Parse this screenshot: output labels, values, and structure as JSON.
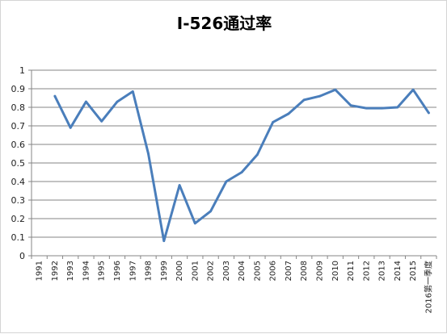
{
  "chart_data": {
    "type": "line",
    "title": "I-526通过率",
    "xlabel": "",
    "ylabel": "",
    "ylim": [
      0,
      1
    ],
    "yticks": [
      "0",
      "0.1",
      "0.2",
      "0.3",
      "0.4",
      "0.5",
      "0.6",
      "0.7",
      "0.8",
      "0.9",
      "1"
    ],
    "grid": true,
    "categories": [
      "1991",
      "1992",
      "1993",
      "1994",
      "1995",
      "1996",
      "1997",
      "1998",
      "1999",
      "2000",
      "2001",
      "2002",
      "2003",
      "2004",
      "2005",
      "2006",
      "2007",
      "2008",
      "2009",
      "2010",
      "2011",
      "2012",
      "2013",
      "2014",
      "2015",
      "2016第一季度"
    ],
    "series": [
      {
        "color": "#4a7ebb",
        "values": [
          null,
          0.86,
          0.69,
          0.83,
          0.725,
          0.83,
          0.885,
          0.55,
          0.08,
          0.38,
          0.175,
          0.24,
          0.4,
          0.45,
          0.545,
          0.72,
          0.765,
          0.84,
          0.86,
          0.895,
          0.81,
          0.795,
          0.795,
          0.8,
          0.895,
          0.77
        ]
      }
    ]
  }
}
